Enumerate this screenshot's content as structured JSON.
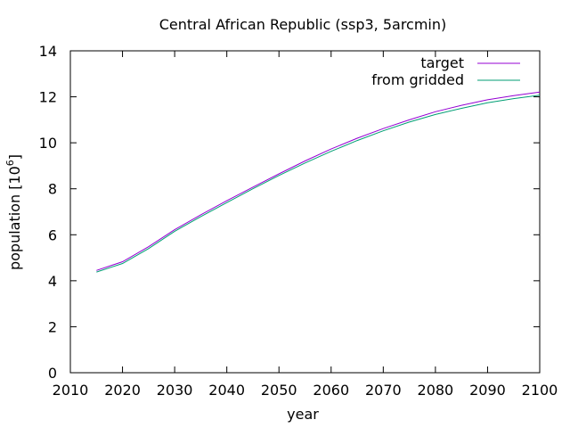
{
  "chart_data": {
    "type": "line",
    "title": "Central African Republic (ssp3, 5arcmin)",
    "xlabel": "year",
    "ylabel": "population [10",
    "ylabel_sup": "6",
    "ylabel_close": "]",
    "xlim": [
      2010,
      2100
    ],
    "ylim": [
      0,
      14
    ],
    "xticks": [
      2010,
      2020,
      2030,
      2040,
      2050,
      2060,
      2070,
      2080,
      2090,
      2100
    ],
    "yticks": [
      0,
      2,
      4,
      6,
      8,
      10,
      12,
      14
    ],
    "grid": false,
    "legend_position": "top-right",
    "series": [
      {
        "name": "target",
        "color": "#9400d3",
        "x": [
          2015,
          2020,
          2025,
          2030,
          2035,
          2040,
          2045,
          2050,
          2055,
          2060,
          2065,
          2070,
          2075,
          2080,
          2085,
          2090,
          2095,
          2100
        ],
        "y": [
          4.45,
          4.83,
          5.48,
          6.22,
          6.87,
          7.48,
          8.07,
          8.65,
          9.21,
          9.73,
          10.2,
          10.62,
          11.0,
          11.35,
          11.63,
          11.87,
          12.05,
          12.21
        ]
      },
      {
        "name": "from gridded",
        "color": "#009e73",
        "x": [
          2015,
          2020,
          2025,
          2030,
          2035,
          2040,
          2045,
          2050,
          2055,
          2060,
          2065,
          2070,
          2075,
          2080,
          2085,
          2090,
          2095,
          2100
        ],
        "y": [
          4.38,
          4.75,
          5.4,
          6.15,
          6.79,
          7.4,
          8.0,
          8.58,
          9.12,
          9.63,
          10.1,
          10.52,
          10.9,
          11.23,
          11.5,
          11.74,
          11.92,
          12.07
        ]
      }
    ]
  }
}
